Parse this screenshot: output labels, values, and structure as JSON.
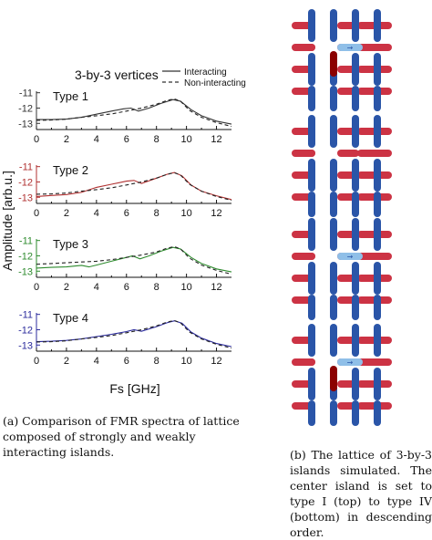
{
  "figure": {
    "chart_title": "3-by-3 vertices",
    "ylabel": "Amplitude [arb.u.]",
    "xlabel": "Fs [GHz]",
    "legend": [
      {
        "label": "Interacting",
        "style": "solid"
      },
      {
        "label": "Non-interacting",
        "style": "dashed"
      }
    ],
    "caption_a": "(a) Comparison of FMR spectra of lattice composed of strongly and weakly interacting islands.",
    "caption_b": "(b) The lattice of 3-by-3 islands simulated. The center island is set to type I (top) to type IV (bottom) in descending order."
  },
  "lattice_panels": [
    {
      "type": "Type 1",
      "center_state": "I"
    },
    {
      "type": "Type 2",
      "center_state": "II"
    },
    {
      "type": "Type 3",
      "center_state": "III"
    },
    {
      "type": "Type 4",
      "center_state": "IV"
    }
  ],
  "colors": {
    "type1": "#333333",
    "type2": "#b03030",
    "type3": "#2e8b2e",
    "type4": "#2b2b9c",
    "horizontal_island": "#cc3344",
    "vertical_island": "#2a55a8",
    "highlight_island": "#8fbfe8",
    "dark_island": "#8b0000"
  },
  "chart_data": [
    {
      "type": "line",
      "title": "Type 1",
      "color": "#333333",
      "xlim": [
        0,
        13
      ],
      "ylim": [
        -13.4,
        -10.9
      ],
      "xticks": [
        0,
        2,
        4,
        6,
        8,
        10,
        12
      ],
      "yticks": [
        -11,
        -12,
        -13
      ],
      "series": [
        {
          "name": "Interacting",
          "style": "solid",
          "x": [
            0,
            1,
            2,
            3,
            4,
            5,
            5.8,
            6.3,
            6.8,
            7.5,
            8.3,
            9.1,
            9.6,
            10.3,
            11,
            12,
            13
          ],
          "y": [
            -12.75,
            -12.75,
            -12.72,
            -12.6,
            -12.4,
            -12.2,
            -12.05,
            -12.0,
            -12.2,
            -12.0,
            -11.7,
            -11.45,
            -11.55,
            -12.1,
            -12.5,
            -12.85,
            -13.05
          ]
        },
        {
          "name": "Non-interacting",
          "style": "dashed",
          "x": [
            0,
            1,
            2,
            3,
            4,
            5,
            6,
            7,
            8,
            8.7,
            9.2,
            9.6,
            10.2,
            11,
            12,
            13
          ],
          "y": [
            -12.8,
            -12.78,
            -12.72,
            -12.6,
            -12.5,
            -12.38,
            -12.2,
            -12.0,
            -11.75,
            -11.5,
            -11.4,
            -11.55,
            -12.15,
            -12.6,
            -12.95,
            -13.2
          ]
        }
      ]
    },
    {
      "type": "line",
      "title": "Type 2",
      "color": "#b03030",
      "xlim": [
        0,
        13
      ],
      "ylim": [
        -13.4,
        -10.9
      ],
      "xticks": [
        0,
        2,
        4,
        6,
        8,
        10,
        12
      ],
      "yticks": [
        -11,
        -12,
        -13
      ],
      "series": [
        {
          "name": "Interacting",
          "style": "solid",
          "x": [
            0,
            1,
            2,
            3,
            4,
            5,
            6,
            6.5,
            7,
            8,
            8.7,
            9.2,
            9.7,
            10.3,
            11,
            12,
            13
          ],
          "y": [
            -12.95,
            -12.88,
            -12.82,
            -12.68,
            -12.35,
            -12.15,
            -11.95,
            -11.9,
            -12.1,
            -11.75,
            -11.5,
            -11.38,
            -11.6,
            -12.2,
            -12.6,
            -12.9,
            -13.15
          ]
        },
        {
          "name": "Non-interacting",
          "style": "dashed",
          "x": [
            0,
            1,
            2,
            3,
            4,
            5,
            6,
            7,
            8,
            8.7,
            9.2,
            9.6,
            10.2,
            11,
            12,
            13
          ],
          "y": [
            -12.8,
            -12.78,
            -12.72,
            -12.6,
            -12.5,
            -12.38,
            -12.2,
            -12.0,
            -11.75,
            -11.5,
            -11.4,
            -11.55,
            -12.15,
            -12.6,
            -12.95,
            -13.2
          ]
        }
      ]
    },
    {
      "type": "line",
      "title": "Type 3",
      "color": "#2e8b2e",
      "xlim": [
        0,
        13
      ],
      "ylim": [
        -13.4,
        -10.9
      ],
      "xticks": [
        0,
        2,
        4,
        6,
        8,
        10,
        12
      ],
      "yticks": [
        -11,
        -12,
        -13
      ],
      "series": [
        {
          "name": "Interacting",
          "style": "solid",
          "x": [
            0,
            1,
            2,
            3,
            3.5,
            4,
            5,
            6,
            6.4,
            6.9,
            7.5,
            8.3,
            9.1,
            9.6,
            10.3,
            11,
            12,
            13
          ],
          "y": [
            -12.8,
            -12.75,
            -12.72,
            -12.62,
            -12.72,
            -12.6,
            -12.35,
            -12.1,
            -12.0,
            -12.2,
            -12.0,
            -11.7,
            -11.45,
            -11.55,
            -12.1,
            -12.5,
            -12.85,
            -13.05
          ]
        },
        {
          "name": "Non-interacting",
          "style": "dashed",
          "x": [
            0,
            1,
            2,
            3,
            4,
            5,
            6,
            7,
            8,
            8.7,
            9.2,
            9.6,
            10.2,
            11,
            12,
            13
          ],
          "y": [
            -12.55,
            -12.5,
            -12.45,
            -12.4,
            -12.35,
            -12.25,
            -12.1,
            -11.95,
            -11.75,
            -11.5,
            -11.4,
            -11.55,
            -12.15,
            -12.6,
            -12.95,
            -13.2
          ]
        }
      ]
    },
    {
      "type": "line",
      "title": "Type 4",
      "color": "#2b2b9c",
      "xlim": [
        0,
        13
      ],
      "ylim": [
        -13.4,
        -10.9
      ],
      "xticks": [
        0,
        2,
        4,
        6,
        8,
        10,
        12
      ],
      "yticks": [
        -11,
        -12,
        -13
      ],
      "series": [
        {
          "name": "Interacting",
          "style": "solid",
          "x": [
            0,
            1,
            2,
            3,
            4,
            5,
            6,
            6.5,
            7,
            8,
            8.7,
            9.2,
            9.7,
            10.3,
            11,
            12,
            13
          ],
          "y": [
            -12.78,
            -12.75,
            -12.7,
            -12.6,
            -12.45,
            -12.3,
            -12.12,
            -12.0,
            -12.1,
            -11.8,
            -11.55,
            -11.42,
            -11.58,
            -12.15,
            -12.55,
            -12.9,
            -13.1
          ]
        },
        {
          "name": "Non-interacting",
          "style": "dashed",
          "x": [
            0,
            1,
            2,
            3,
            4,
            5,
            6,
            7,
            8,
            8.7,
            9.2,
            9.6,
            10.2,
            11,
            12,
            13
          ],
          "y": [
            -12.8,
            -12.78,
            -12.72,
            -12.6,
            -12.5,
            -12.38,
            -12.2,
            -12.0,
            -11.75,
            -11.5,
            -11.4,
            -11.55,
            -12.15,
            -12.6,
            -12.95,
            -13.2
          ]
        }
      ]
    }
  ]
}
